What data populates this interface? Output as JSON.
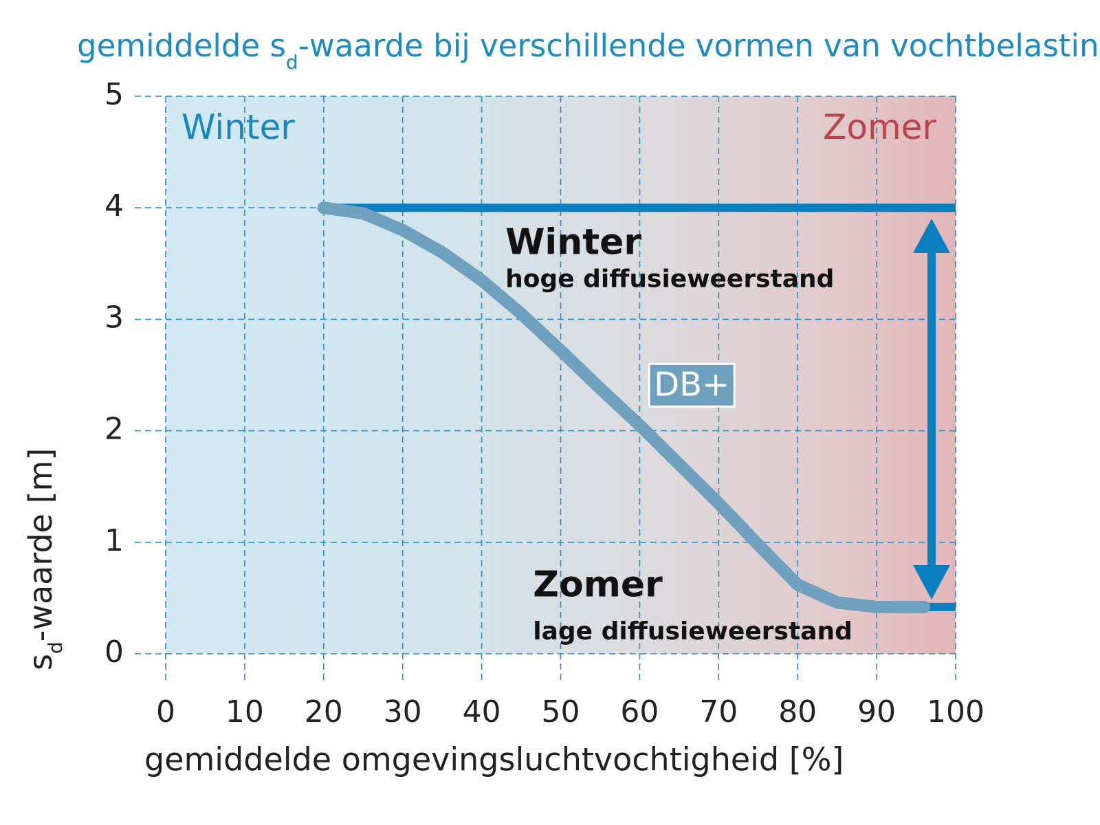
{
  "chart_data": {
    "type": "line",
    "title": [
      "gemiddelde s",
      "d",
      "-waarde bij verschillende vormen van vochtbelasting"
    ],
    "x_label": "gemiddelde omgevingsluchtvochtigheid [%]",
    "y_label": [
      "s",
      "d",
      "-waarde [m]"
    ],
    "xlim": [
      0,
      100
    ],
    "ylim": [
      0,
      5
    ],
    "xticks": [
      0,
      10,
      20,
      30,
      40,
      50,
      60,
      70,
      80,
      90,
      100
    ],
    "yticks": [
      0,
      1,
      2,
      3,
      4,
      5
    ],
    "grid": true,
    "regions": [
      {
        "text": "Winter",
        "color": "#1a86c0"
      },
      {
        "text": "Zomer",
        "color": "#b9444b"
      }
    ],
    "series": [
      {
        "color": "#0a7fc0",
        "x": [
          20,
          100
        ],
        "values": [
          4,
          4
        ]
      },
      {
        "color": "#0a7fc0",
        "x": [
          96,
          100
        ],
        "values": [
          0.42,
          0.42
        ]
      },
      {
        "name": "DB+",
        "color": "#6fa0bd",
        "x": [
          20,
          25,
          30,
          35,
          40,
          45,
          50,
          55,
          60,
          65,
          70,
          75,
          80,
          85,
          90,
          96
        ],
        "values": [
          4.0,
          3.95,
          3.8,
          3.6,
          3.35,
          3.05,
          2.72,
          2.38,
          2.05,
          1.7,
          1.35,
          0.98,
          0.62,
          0.46,
          0.42,
          0.42
        ]
      }
    ],
    "annotations": [
      {
        "title": "Winter",
        "text": "hoge diffusieweerstand"
      },
      {
        "title": "Zomer",
        "text": "lage diffusieweerstand"
      }
    ]
  }
}
